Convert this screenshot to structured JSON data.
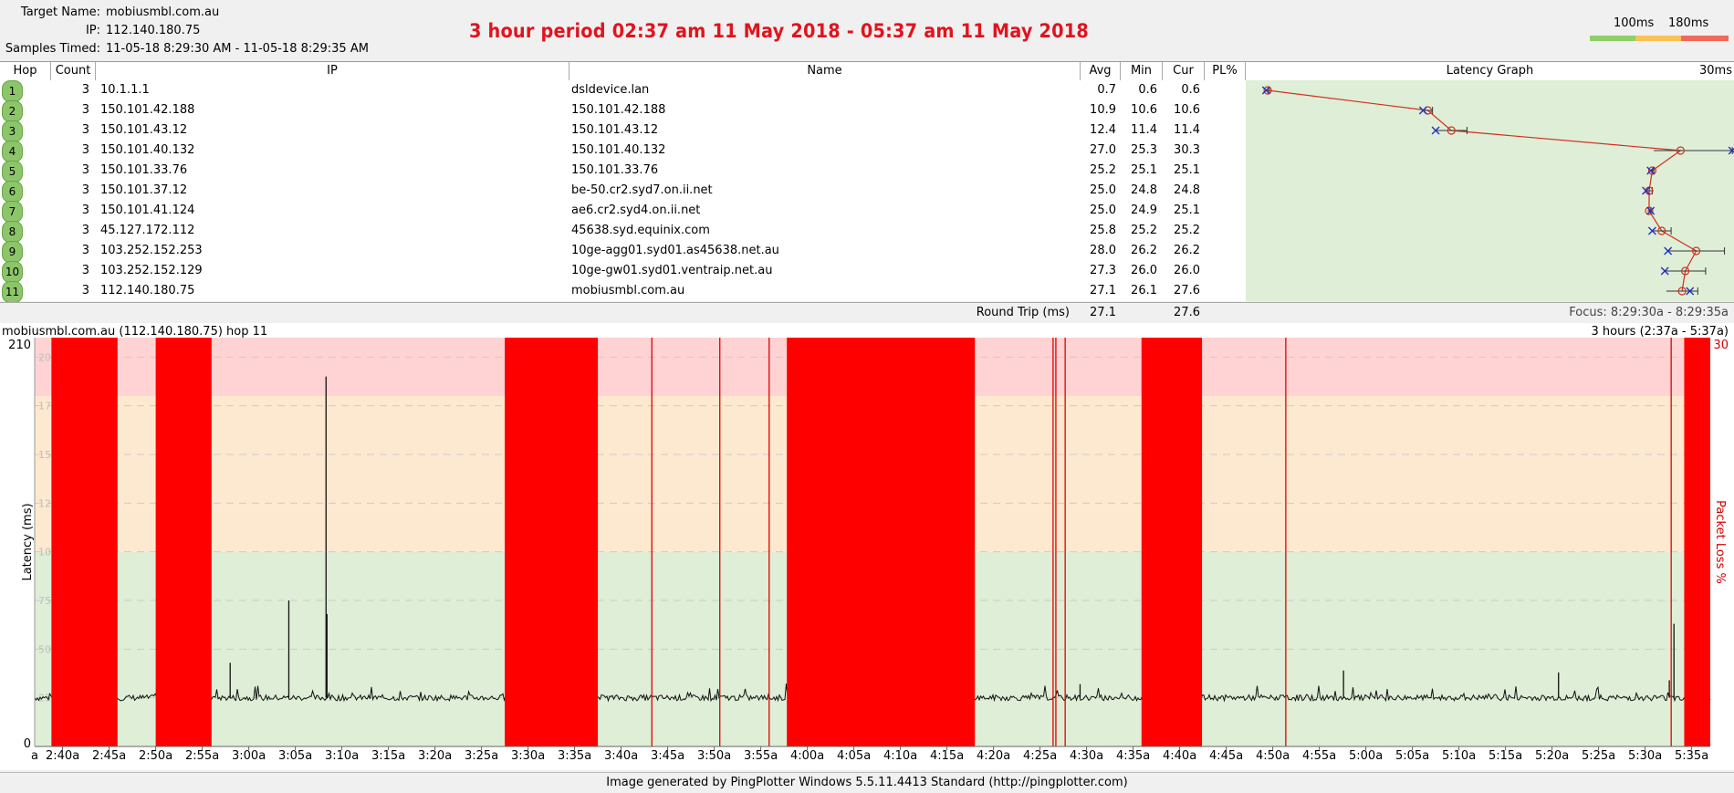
{
  "header": {
    "target_name_label": "Target Name:",
    "target_name": "mobiusmbl.com.au",
    "ip_label": "IP:",
    "ip": "112.140.180.75",
    "samples_label": "Samples Timed:",
    "samples": "11-05-18 8:29:30 AM - 11-05-18 8:29:35 AM",
    "title": "3 hour period 02:37 am 11 May 2018 - 05:37 am 11 May 2018",
    "scale_100": "100ms",
    "scale_180": "180ms",
    "scale_colors": [
      "#8fcf6a",
      "#f9c257",
      "#f0695a"
    ]
  },
  "table": {
    "headers": {
      "hop": "Hop",
      "count": "Count",
      "ip": "IP",
      "name": "Name",
      "avg": "Avg",
      "min": "Min",
      "cur": "Cur",
      "pl": "PL%",
      "graph": "Latency Graph",
      "graph_max": "30ms"
    },
    "rows": [
      {
        "hop": "1",
        "count": "3",
        "ip": "10.1.1.1",
        "name": "dsldevice.lan",
        "avg": "0.7",
        "min": "0.6",
        "cur": "0.6",
        "pl": ""
      },
      {
        "hop": "2",
        "count": "3",
        "ip": "150.101.42.188",
        "name": "150.101.42.188",
        "avg": "10.9",
        "min": "10.6",
        "cur": "10.6",
        "pl": ""
      },
      {
        "hop": "3",
        "count": "3",
        "ip": "150.101.43.12",
        "name": "150.101.43.12",
        "avg": "12.4",
        "min": "11.4",
        "cur": "11.4",
        "pl": ""
      },
      {
        "hop": "4",
        "count": "3",
        "ip": "150.101.40.132",
        "name": "150.101.40.132",
        "avg": "27.0",
        "min": "25.3",
        "cur": "30.3",
        "pl": ""
      },
      {
        "hop": "5",
        "count": "3",
        "ip": "150.101.33.76",
        "name": "150.101.33.76",
        "avg": "25.2",
        "min": "25.1",
        "cur": "25.1",
        "pl": ""
      },
      {
        "hop": "6",
        "count": "3",
        "ip": "150.101.37.12",
        "name": "be-50.cr2.syd7.on.ii.net",
        "avg": "25.0",
        "min": "24.8",
        "cur": "24.8",
        "pl": ""
      },
      {
        "hop": "7",
        "count": "3",
        "ip": "150.101.41.124",
        "name": "ae6.cr2.syd4.on.ii.net",
        "avg": "25.0",
        "min": "24.9",
        "cur": "25.1",
        "pl": ""
      },
      {
        "hop": "8",
        "count": "3",
        "ip": "45.127.172.112",
        "name": "45638.syd.equinix.com",
        "avg": "25.8",
        "min": "25.2",
        "cur": "25.2",
        "pl": ""
      },
      {
        "hop": "9",
        "count": "3",
        "ip": "103.252.152.253",
        "name": "10ge-agg01.syd01.as45638.net.au",
        "avg": "28.0",
        "min": "26.2",
        "cur": "26.2",
        "pl": ""
      },
      {
        "hop": "10",
        "count": "3",
        "ip": "103.252.152.129",
        "name": "10ge-gw01.syd01.ventraip.net.au",
        "avg": "27.3",
        "min": "26.0",
        "cur": "26.0",
        "pl": ""
      },
      {
        "hop": "11",
        "count": "3",
        "ip": "112.140.180.75",
        "name": "mobiusmbl.com.au",
        "avg": "27.1",
        "min": "26.1",
        "cur": "27.6",
        "pl": ""
      }
    ],
    "round_trip_label": "Round Trip (ms)",
    "round_trip_avg": "27.1",
    "round_trip_cur": "27.6",
    "focus": "Focus: 8:29:30a - 8:29:35a"
  },
  "chart": {
    "caption_left": "mobiusmbl.com.au (112.140.180.75) hop 11",
    "caption_right": "3 hours (2:37a - 5:37a)",
    "ylabel": "Latency (ms)",
    "y2label": "Packet Loss %",
    "y_top_label": "210",
    "y_zero_label": "0",
    "y2_top_label": "30",
    "y_max": 210,
    "green_max": 100,
    "yellow_max": 180,
    "x_start_min": 157,
    "x_end_min": 337,
    "baseline": 25,
    "x_ticks": [
      "2:40a",
      "2:45a",
      "2:50a",
      "2:55a",
      "3:00a",
      "3:05a",
      "3:10a",
      "3:15a",
      "3:20a",
      "3:25a",
      "3:30a",
      "3:35a",
      "3:40a",
      "3:45a",
      "3:50a",
      "3:55a",
      "4:00a",
      "4:05a",
      "4:10a",
      "4:15a",
      "4:20a",
      "4:25a",
      "4:30a",
      "4:35a",
      "4:40a",
      "4:45a",
      "4:50a",
      "4:55a",
      "5:00a",
      "5:05a",
      "5:10a",
      "5:15a",
      "5:20a",
      "5:25a",
      "5:30a",
      "5:35a"
    ],
    "x_tick_first_partial": "a",
    "loss_blocks": [
      [
        158.8,
        165.9
      ],
      [
        170.0,
        176.0
      ],
      [
        207.5,
        217.5
      ],
      [
        237.8,
        258.0
      ],
      [
        275.9,
        282.4
      ],
      [
        334.2,
        339.2
      ]
    ],
    "loss_lines": [
      223.3,
      230.6,
      235.9,
      266.4,
      266.7,
      267.7,
      291.4,
      332.8
    ],
    "spikes": [
      [
        178.0,
        43
      ],
      [
        184.3,
        75
      ],
      [
        188.3,
        190
      ],
      [
        188.4,
        68
      ],
      [
        269.3,
        32
      ],
      [
        297.6,
        39
      ],
      [
        320.7,
        38
      ],
      [
        332.6,
        34
      ],
      [
        333.1,
        63
      ]
    ]
  },
  "footer": "Image generated by PingPlotter Windows 5.5.11.4413 Standard (http://pingplotter.com)"
}
